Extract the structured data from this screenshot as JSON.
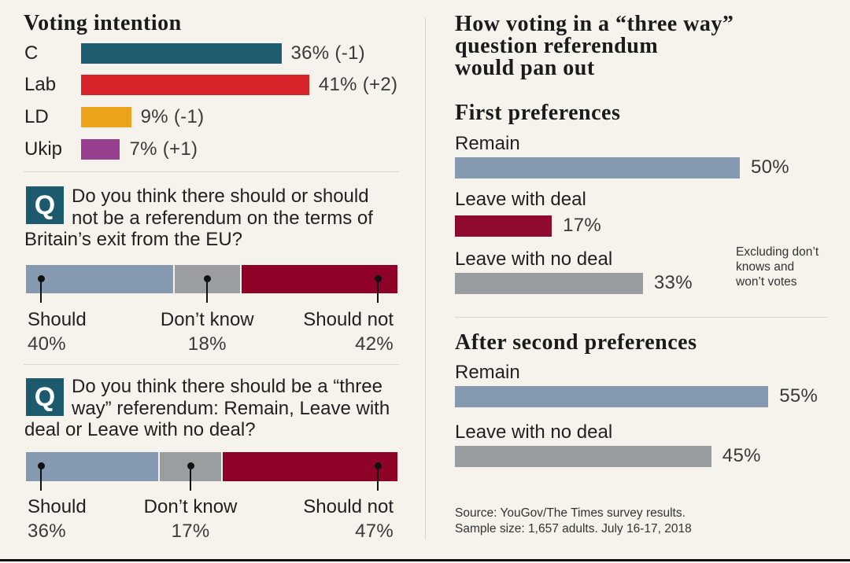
{
  "colors": {
    "background": "#f6f3ed",
    "text": "#231f20",
    "value_text": "#3a3a3a",
    "divider": "#dcd4c7",
    "q_box": "#1e5a6e",
    "marker": "#111111"
  },
  "three_way": {
    "title_lines": [
      "How voting in a “three way”",
      "question referendum",
      "would pan out"
    ]
  },
  "source": {
    "lines": [
      "Source: YouGov/The Times survey results.",
      "Sample size: 1,657 adults. July 16-17, 2018"
    ]
  },
  "chart_data": [
    {
      "type": "bar",
      "horizontal": true,
      "title": "Voting intention",
      "categories": [
        "C",
        "Lab",
        "LD",
        "Ukip"
      ],
      "values": [
        36,
        41,
        9,
        7
      ],
      "changes": [
        -1,
        2,
        -1,
        1
      ],
      "value_labels": [
        "36% (-1)",
        "41% (+2)",
        "9% (-1)",
        "7% (+1)"
      ],
      "colors": [
        "#1e5c70",
        "#d9242b",
        "#eaa31b",
        "#973e8e"
      ]
    },
    {
      "type": "bar",
      "horizontal": true,
      "stacked": true,
      "q_label": "Q",
      "question_lines": [
        "Do you think there should or should",
        "not be a referendum on the terms of",
        "Britain’s exit from the EU?"
      ],
      "categories": [
        "Should",
        "Don’t know",
        "Should not"
      ],
      "values": [
        40,
        18,
        42
      ],
      "value_labels": [
        "40%",
        "18%",
        "42%"
      ],
      "colors": [
        "#8599b1",
        "#9a9ea1",
        "#8f0228"
      ]
    },
    {
      "type": "bar",
      "horizontal": true,
      "stacked": true,
      "q_label": "Q",
      "question_lines": [
        "Do you think there should be a “three",
        "way” referendum: Remain, Leave with",
        "deal or Leave with no deal?"
      ],
      "categories": [
        "Should",
        "Don’t know",
        "Should not"
      ],
      "values": [
        36,
        17,
        47
      ],
      "value_labels": [
        "36%",
        "17%",
        "47%"
      ],
      "colors": [
        "#8599b1",
        "#9a9ea1",
        "#8f0228"
      ]
    },
    {
      "type": "bar",
      "horizontal": true,
      "title": "First preferences",
      "categories": [
        "Remain",
        "Leave with deal",
        "Leave with no deal"
      ],
      "values": [
        50,
        17,
        33
      ],
      "value_labels": [
        "50%",
        "17%",
        "33%"
      ],
      "colors": [
        "#8599b1",
        "#900a2e",
        "#999da0"
      ],
      "note_lines": [
        "Excluding don’t",
        "knows and",
        "won’t votes"
      ]
    },
    {
      "type": "bar",
      "horizontal": true,
      "title": "After second preferences",
      "categories": [
        "Remain",
        "Leave with no deal"
      ],
      "values": [
        55,
        45
      ],
      "value_labels": [
        "55%",
        "45%"
      ],
      "colors": [
        "#8599b1",
        "#999da0"
      ]
    }
  ]
}
